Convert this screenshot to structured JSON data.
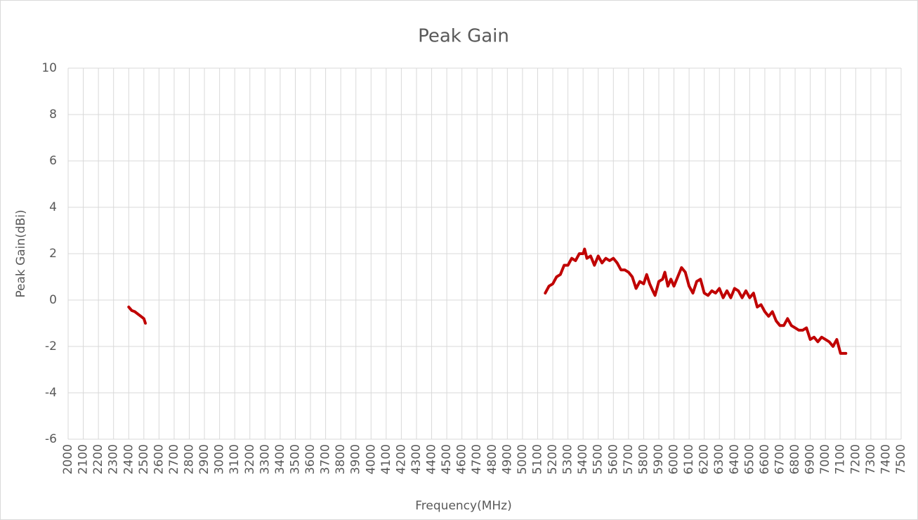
{
  "chart_data": {
    "type": "line",
    "title": "Peak Gain",
    "x_label": "Frequency(MHz)",
    "y_label": "Peak Gain(dBi)",
    "x": [
      2400,
      2420,
      2440,
      2460,
      2480,
      2500,
      2510,
      2800,
      5150,
      5175,
      5200,
      5225,
      5250,
      5275,
      5300,
      5325,
      5350,
      5375,
      5400,
      5410,
      5425,
      5450,
      5475,
      5500,
      5525,
      5550,
      5575,
      5600,
      5625,
      5650,
      5675,
      5700,
      5725,
      5750,
      5775,
      5800,
      5820,
      5840,
      5860,
      5875,
      5900,
      5925,
      5940,
      5960,
      5980,
      6000,
      6025,
      6050,
      6075,
      6100,
      6125,
      6150,
      6175,
      6200,
      6225,
      6250,
      6275,
      6300,
      6325,
      6350,
      6375,
      6400,
      6425,
      6450,
      6475,
      6500,
      6525,
      6550,
      6575,
      6600,
      6625,
      6650,
      6675,
      6700,
      6725,
      6750,
      6775,
      6800,
      6825,
      6850,
      6875,
      6900,
      6925,
      6950,
      6975,
      7000,
      7025,
      7050,
      7075,
      7100,
      7135
    ],
    "series": [
      {
        "color": "#c00000",
        "values": [
          -0.3,
          -0.45,
          -0.5,
          -0.6,
          -0.7,
          -0.8,
          -1.0,
          null,
          0.3,
          0.6,
          0.7,
          1.0,
          1.1,
          1.5,
          1.5,
          1.8,
          1.7,
          2.0,
          2.0,
          2.2,
          1.8,
          1.9,
          1.5,
          1.9,
          1.6,
          1.8,
          1.7,
          1.8,
          1.6,
          1.3,
          1.3,
          1.2,
          1.0,
          0.5,
          0.8,
          0.7,
          1.1,
          0.7,
          0.4,
          0.2,
          0.8,
          0.9,
          1.2,
          0.6,
          0.9,
          0.6,
          1.0,
          1.4,
          1.2,
          0.6,
          0.3,
          0.8,
          0.9,
          0.3,
          0.2,
          0.4,
          0.3,
          0.5,
          0.1,
          0.4,
          0.1,
          0.5,
          0.4,
          0.1,
          0.4,
          0.1,
          0.3,
          -0.3,
          -0.2,
          -0.5,
          -0.7,
          -0.5,
          -0.9,
          -1.1,
          -1.1,
          -0.8,
          -1.1,
          -1.2,
          -1.3,
          -1.3,
          -1.2,
          -1.7,
          -1.6,
          -1.8,
          -1.6,
          -1.7,
          -1.8,
          -2.0,
          -1.7,
          -2.3,
          -2.3
        ]
      }
    ],
    "xlim": [
      2000,
      7500
    ],
    "xticks": [
      2000,
      2100,
      2200,
      2300,
      2400,
      2500,
      2600,
      2700,
      2800,
      2900,
      3000,
      3100,
      3200,
      3300,
      3400,
      3500,
      3600,
      3700,
      3800,
      3900,
      4000,
      4100,
      4200,
      4300,
      4400,
      4500,
      4600,
      4700,
      4800,
      4900,
      5000,
      5100,
      5200,
      5300,
      5400,
      5500,
      5600,
      5700,
      5800,
      5900,
      6000,
      6100,
      6200,
      6300,
      6400,
      6500,
      6600,
      6700,
      6800,
      6900,
      7000,
      7100,
      7200,
      7300,
      7400,
      7500
    ],
    "ylim": [
      -6,
      10
    ],
    "yticks": [
      -6,
      -4,
      -2,
      0,
      2,
      4,
      6,
      8,
      10
    ],
    "grid": true
  }
}
